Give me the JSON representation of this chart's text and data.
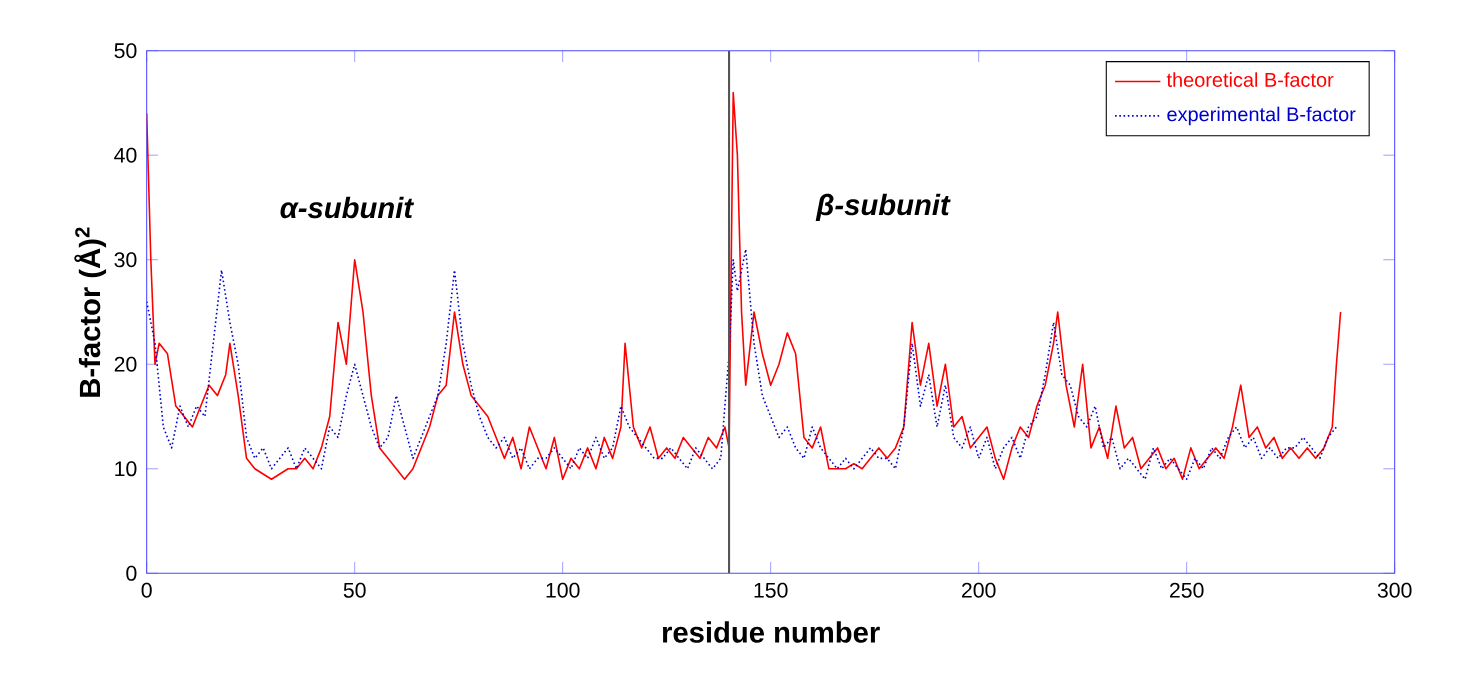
{
  "chart_data": {
    "type": "line",
    "xlabel": "residue number",
    "ylabel": "B-factor (Å)$^{2}$",
    "xlim": [
      0,
      300
    ],
    "ylim": [
      0,
      50
    ],
    "xticks": [
      0,
      50,
      100,
      150,
      200,
      250,
      300
    ],
    "yticks": [
      0,
      10,
      20,
      30,
      40,
      50
    ],
    "legend": "top right",
    "grid": false,
    "ref_lines": [
      {
        "axis": "x",
        "value": 140,
        "color": "#555555",
        "line_style": "solid"
      }
    ],
    "annotations": [
      "α-subunit",
      "β-subunit"
    ],
    "series": [
      {
        "name": "theoretical B-factor",
        "color": "#ff0000",
        "line_style": "solid",
        "x": [
          0,
          1,
          2,
          3,
          5,
          7,
          9,
          11,
          13,
          15,
          17,
          19,
          20,
          22,
          24,
          26,
          28,
          30,
          32,
          34,
          36,
          38,
          40,
          42,
          44,
          46,
          48,
          50,
          52,
          54,
          56,
          58,
          60,
          62,
          64,
          66,
          68,
          70,
          72,
          74,
          76,
          78,
          80,
          82,
          84,
          86,
          88,
          90,
          92,
          94,
          96,
          98,
          100,
          102,
          104,
          106,
          108,
          110,
          112,
          114,
          115,
          117,
          119,
          121,
          123,
          125,
          127,
          129,
          131,
          133,
          135,
          137,
          139,
          140,
          141,
          142,
          143,
          144,
          146,
          148,
          150,
          152,
          154,
          156,
          158,
          160,
          162,
          164,
          166,
          168,
          170,
          172,
          174,
          176,
          178,
          180,
          182,
          184,
          186,
          188,
          190,
          192,
          194,
          196,
          198,
          200,
          202,
          204,
          206,
          208,
          210,
          212,
          214,
          216,
          218,
          219,
          221,
          223,
          225,
          227,
          229,
          231,
          233,
          235,
          237,
          239,
          241,
          243,
          245,
          247,
          249,
          251,
          253,
          255,
          257,
          259,
          261,
          263,
          265,
          267,
          269,
          271,
          273,
          275,
          277,
          279,
          281,
          283,
          285,
          286,
          287
        ],
        "values": [
          44,
          30,
          20,
          22,
          21,
          16,
          15,
          14,
          16,
          18,
          17,
          19,
          22,
          17,
          11,
          10,
          9.5,
          9,
          9.5,
          10,
          10,
          11,
          10,
          12,
          15,
          24,
          20,
          30,
          25,
          17,
          12,
          11,
          10,
          9,
          10,
          12,
          14,
          17,
          18,
          25,
          20,
          17,
          16,
          15,
          13,
          11,
          13,
          10,
          14,
          12,
          10,
          13,
          9,
          11,
          10,
          12,
          10,
          13,
          11,
          14,
          22,
          14,
          12,
          14,
          11,
          12,
          11,
          13,
          12,
          11,
          13,
          12,
          14,
          12,
          46,
          40,
          25,
          18,
          25,
          21,
          18,
          20,
          23,
          21,
          13,
          12,
          14,
          10,
          10,
          10,
          10.5,
          10,
          11,
          12,
          11,
          12,
          14,
          24,
          18,
          22,
          16,
          20,
          14,
          15,
          12,
          13,
          14,
          11,
          9,
          12,
          14,
          13,
          16,
          18,
          22,
          25,
          18,
          14,
          20,
          12,
          14,
          11,
          16,
          12,
          13,
          10,
          11,
          12,
          10,
          11,
          9,
          12,
          10,
          11,
          12,
          11,
          14,
          18,
          13,
          14,
          12,
          13,
          11,
          12,
          11,
          12,
          11,
          12,
          14,
          20,
          25
        ]
      },
      {
        "name": "experimental B-factor",
        "color": "#0000cc",
        "line_style": "dotted",
        "x": [
          0,
          2,
          4,
          6,
          8,
          10,
          12,
          14,
          16,
          18,
          20,
          22,
          24,
          26,
          28,
          30,
          32,
          34,
          36,
          38,
          40,
          42,
          44,
          46,
          48,
          50,
          52,
          54,
          56,
          58,
          60,
          62,
          64,
          66,
          68,
          70,
          72,
          74,
          76,
          78,
          80,
          82,
          84,
          86,
          88,
          90,
          92,
          94,
          96,
          98,
          100,
          102,
          104,
          106,
          108,
          110,
          112,
          114,
          116,
          118,
          120,
          122,
          124,
          126,
          128,
          130,
          132,
          134,
          136,
          138,
          139,
          140,
          141,
          142,
          144,
          146,
          148,
          150,
          152,
          154,
          156,
          158,
          160,
          162,
          164,
          166,
          168,
          170,
          172,
          174,
          176,
          178,
          180,
          182,
          184,
          186,
          188,
          190,
          192,
          194,
          196,
          198,
          200,
          202,
          204,
          206,
          208,
          210,
          212,
          214,
          216,
          218,
          220,
          222,
          224,
          226,
          228,
          230,
          232,
          234,
          236,
          238,
          240,
          242,
          244,
          246,
          248,
          250,
          252,
          254,
          256,
          258,
          260,
          262,
          264,
          266,
          268,
          270,
          272,
          274,
          276,
          278,
          280,
          282,
          284,
          286
        ],
        "values": [
          26,
          22,
          14,
          12,
          16,
          14,
          16,
          15,
          22,
          29,
          24,
          20,
          13,
          11,
          12,
          10,
          11,
          12,
          10,
          12,
          11,
          10,
          14,
          13,
          17,
          20,
          17,
          14,
          12,
          13,
          17,
          14,
          11,
          13,
          15,
          17,
          22,
          29,
          22,
          18,
          15,
          13,
          12,
          13,
          11,
          12,
          10,
          11,
          11,
          12,
          11,
          10,
          12,
          11,
          13,
          11,
          12,
          16,
          14,
          13,
          12,
          11,
          11,
          12,
          11,
          10,
          12,
          11,
          10,
          11,
          16,
          21,
          30,
          27,
          31,
          22,
          17,
          15,
          13,
          14,
          12,
          11,
          14,
          12,
          11,
          10,
          11,
          10,
          11,
          12,
          11,
          11,
          10,
          14,
          22,
          16,
          19,
          14,
          18,
          13,
          12,
          14,
          11,
          13,
          10,
          12,
          13,
          11,
          14,
          15,
          19,
          24,
          19,
          18,
          15,
          14,
          16,
          12,
          13,
          10,
          11,
          10,
          9,
          12,
          10,
          11,
          10,
          9,
          11,
          10,
          12,
          11,
          13,
          14,
          12,
          13,
          11,
          12,
          11,
          12,
          12,
          13,
          12,
          11,
          13,
          14
        ]
      }
    ]
  }
}
